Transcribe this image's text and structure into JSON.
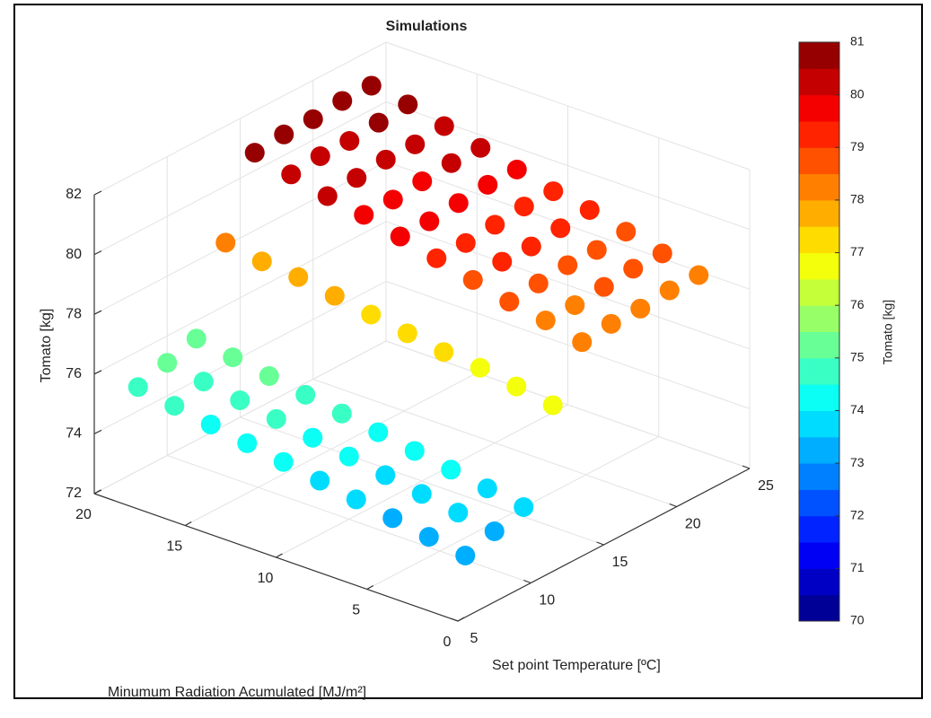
{
  "chart_data": {
    "type": "scatter3d",
    "title": "Simulations",
    "xlabel": "Minumum Radiation Acumulated [MJ/m²]",
    "ylabel": "Set point Temperature [ºC]",
    "zlabel": "Tomato [kg]",
    "colorbar_label": "Tomato [kg]",
    "xlim": [
      0,
      20
    ],
    "xticks": [
      0,
      5,
      10,
      15,
      20
    ],
    "ylim": [
      5,
      25
    ],
    "yticks": [
      5,
      10,
      15,
      20,
      25
    ],
    "zlim": [
      72,
      82
    ],
    "zticks": [
      72,
      74,
      76,
      78,
      80,
      82
    ],
    "clim": [
      70,
      81
    ],
    "cticks": [
      70,
      71,
      72,
      73,
      74,
      75,
      76,
      77,
      78,
      79,
      80,
      81
    ],
    "grid": true,
    "colormap": [
      "#000097",
      "#0000C5",
      "#0000F4",
      "#0023FF",
      "#0051FF",
      "#0080FF",
      "#00AEFF",
      "#00DCFF",
      "#0BFFF4",
      "#3AFFC5",
      "#68FF97",
      "#97FF68",
      "#C5FF3A",
      "#F4FF0B",
      "#FFDC00",
      "#FFAE00",
      "#FF8000",
      "#FF5100",
      "#FF2300",
      "#F40000",
      "#C50000",
      "#970000"
    ],
    "x": [
      2,
      4,
      6,
      8,
      10,
      12,
      14,
      16,
      18,
      20,
      2,
      4,
      6,
      8,
      10,
      12,
      14,
      16,
      18,
      20,
      2,
      4,
      6,
      8,
      10,
      12,
      14,
      16,
      18,
      20,
      2,
      4,
      6,
      8,
      10,
      12,
      14,
      16,
      18,
      20,
      2,
      4,
      6,
      8,
      10,
      12,
      14,
      16,
      18,
      20,
      2,
      4,
      6,
      8,
      10,
      12,
      14,
      16,
      18,
      20,
      2,
      4,
      6,
      8,
      10,
      12,
      14,
      16,
      18,
      20,
      2,
      4,
      6,
      8,
      10,
      12,
      14,
      16,
      18,
      20,
      2,
      4,
      6,
      8,
      10,
      12,
      14,
      16,
      18,
      20
    ],
    "y": [
      8,
      8,
      8,
      8,
      8,
      8,
      8,
      8,
      8,
      8,
      10,
      10,
      10,
      10,
      10,
      10,
      10,
      10,
      10,
      10,
      12,
      12,
      12,
      12,
      12,
      12,
      12,
      12,
      12,
      12,
      14,
      14,
      14,
      14,
      14,
      14,
      14,
      14,
      14,
      14,
      16,
      16,
      16,
      16,
      16,
      16,
      16,
      16,
      16,
      16,
      18,
      18,
      18,
      18,
      18,
      18,
      18,
      18,
      18,
      18,
      20,
      20,
      20,
      20,
      20,
      20,
      20,
      20,
      20,
      20,
      22,
      22,
      22,
      22,
      22,
      22,
      22,
      22,
      22,
      22,
      24,
      24,
      24,
      24,
      24,
      24,
      24,
      24,
      24,
      24
    ],
    "z": [
      73.0,
      73.2,
      73.4,
      73.6,
      73.8,
      74.0,
      74.2,
      74.4,
      74.6,
      74.8,
      73.3,
      73.5,
      73.7,
      73.9,
      74.1,
      74.3,
      74.5,
      74.7,
      74.9,
      75.1,
      73.6,
      73.8,
      74.0,
      74.2,
      74.4,
      74.6,
      74.8,
      75.0,
      75.2,
      75.4,
      76.5,
      76.7,
      76.9,
      77.0,
      77.2,
      77.4,
      77.6,
      77.8,
      77.9,
      78.1,
      78.1,
      78.4,
      78.6,
      78.9,
      79.2,
      79.5,
      79.8,
      80.0,
      80.3,
      80.6,
      78.2,
      78.4,
      78.7,
      79.0,
      79.2,
      79.5,
      79.8,
      80.1,
      80.4,
      80.7,
      78.2,
      78.5,
      78.8,
      79.0,
      79.3,
      79.6,
      79.9,
      80.2,
      80.4,
      80.7,
      78.3,
      78.6,
      78.8,
      79.1,
      79.4,
      79.7,
      80.0,
      80.2,
      80.5,
      80.8,
      78.3,
      78.6,
      78.9,
      79.2,
      79.4,
      79.7,
      80.0,
      80.3,
      80.6,
      80.8
    ]
  }
}
